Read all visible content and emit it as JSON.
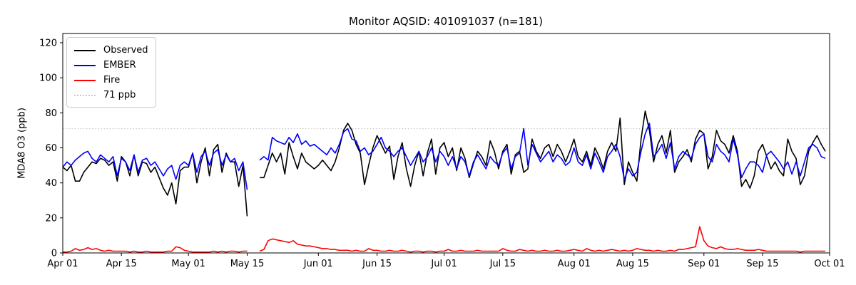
{
  "figure": {
    "title": "Monitor AQSID: 401091037 (n=181)",
    "background": "#ffffff"
  },
  "axes": {
    "ylabel": "MDA8 O3 (ppb)",
    "yticks": [
      0,
      20,
      40,
      60,
      80,
      100,
      120
    ],
    "xticks": [
      {
        "label": "Apr 01",
        "day": 0
      },
      {
        "label": "Apr 15",
        "day": 14
      },
      {
        "label": "May 01",
        "day": 30
      },
      {
        "label": "May 15",
        "day": 44
      },
      {
        "label": "Jun 01",
        "day": 61
      },
      {
        "label": "Jun 15",
        "day": 75
      },
      {
        "label": "Jul 01",
        "day": 91
      },
      {
        "label": "Jul 15",
        "day": 105
      },
      {
        "label": "Aug 01",
        "day": 122
      },
      {
        "label": "Aug 15",
        "day": 136
      },
      {
        "label": "Sep 01",
        "day": 153
      },
      {
        "label": "Sep 15",
        "day": 167
      },
      {
        "label": "Oct 01",
        "day": 183
      }
    ]
  },
  "legend": {
    "items": [
      {
        "label": "Observed",
        "color": "#000000",
        "style": "solid"
      },
      {
        "label": "EMBER",
        "color": "#0000ff",
        "style": "solid"
      },
      {
        "label": "Fire",
        "color": "#ff0000",
        "style": "solid"
      },
      {
        "label": "71 ppb",
        "color": "#c8c8c8",
        "style": "dotted"
      }
    ]
  },
  "chart_data": {
    "type": "line",
    "title": "Monitor AQSID: 401091037 (n=181)",
    "xlabel": "",
    "ylabel": "MDA8 O3 (ppb)",
    "x_unit": "daily values, days since Apr 01 (Apr 01 - Sep 30, n=181, 2 missing days May 16-17)",
    "x_range": [
      0,
      183
    ],
    "ylim": [
      0,
      125.3
    ],
    "grid": false,
    "legend_position": "upper left",
    "threshold": {
      "value": 71,
      "label": "71 ppb",
      "color": "#c8c8c8",
      "style": "dotted"
    },
    "series": [
      {
        "name": "Observed",
        "color": "#000000",
        "values": [
          49,
          47,
          50,
          41,
          41,
          46,
          49,
          52,
          51,
          54,
          53,
          50,
          52,
          41,
          55,
          52,
          44,
          56,
          44,
          52,
          51,
          46,
          49,
          43,
          37,
          33,
          40,
          28,
          47,
          49,
          49,
          57,
          40,
          52,
          60,
          44,
          59,
          62,
          46,
          57,
          52,
          52,
          38,
          50,
          21,
          null,
          null,
          43,
          43,
          50,
          57,
          52,
          57,
          45,
          63,
          55,
          48,
          57,
          52,
          50,
          48,
          50,
          53,
          50,
          47,
          52,
          60,
          70,
          74,
          70,
          62,
          57,
          39,
          50,
          60,
          67,
          62,
          57,
          61,
          42,
          55,
          63,
          48,
          38,
          50,
          58,
          44,
          57,
          65,
          45,
          60,
          63,
          55,
          60,
          47,
          60,
          54,
          43,
          51,
          58,
          55,
          50,
          64,
          58,
          48,
          58,
          62,
          45,
          56,
          58,
          46,
          48,
          65,
          58,
          54,
          60,
          62,
          55,
          62,
          58,
          52,
          58,
          65,
          55,
          52,
          58,
          50,
          60,
          55,
          48,
          58,
          63,
          58,
          77,
          39,
          52,
          46,
          41,
          65,
          81,
          70,
          52,
          62,
          67,
          57,
          70,
          46,
          52,
          55,
          59,
          52,
          65,
          70,
          68,
          48,
          55,
          70,
          64,
          62,
          57,
          67,
          58,
          38,
          42,
          37,
          44,
          58,
          62,
          55,
          48,
          52,
          47,
          44,
          65,
          58,
          54,
          39,
          44,
          58,
          63,
          67,
          62,
          58
        ]
      },
      {
        "name": "EMBER",
        "color": "#0000ff",
        "values": [
          49,
          52,
          50,
          53,
          55,
          57,
          58,
          54,
          52,
          56,
          54,
          52,
          55,
          44,
          54,
          52,
          47,
          56,
          46,
          53,
          54,
          50,
          52,
          48,
          44,
          48,
          50,
          42,
          50,
          52,
          50,
          57,
          46,
          55,
          58,
          50,
          57,
          59,
          50,
          56,
          52,
          54,
          47,
          52,
          36,
          null,
          null,
          53,
          55,
          53,
          66,
          64,
          63,
          62,
          66,
          63,
          68,
          62,
          64,
          61,
          62,
          60,
          58,
          56,
          60,
          57,
          62,
          69,
          71,
          65,
          64,
          58,
          60,
          56,
          58,
          62,
          66,
          60,
          58,
          55,
          58,
          60,
          55,
          50,
          54,
          58,
          52,
          55,
          60,
          52,
          58,
          55,
          50,
          55,
          48,
          55,
          52,
          44,
          52,
          56,
          52,
          48,
          55,
          52,
          50,
          57,
          60,
          48,
          55,
          57,
          71,
          50,
          62,
          57,
          52,
          55,
          58,
          52,
          56,
          54,
          50,
          52,
          60,
          52,
          50,
          56,
          48,
          57,
          52,
          46,
          55,
          58,
          62,
          55,
          42,
          48,
          44,
          46,
          58,
          68,
          74,
          55,
          58,
          62,
          54,
          63,
          48,
          55,
          58,
          56,
          54,
          62,
          66,
          68,
          55,
          52,
          62,
          58,
          56,
          52,
          65,
          56,
          43,
          48,
          52,
          52,
          50,
          46,
          56,
          58,
          55,
          52,
          48,
          52,
          45,
          52,
          44,
          52,
          60,
          62,
          60,
          55,
          54
        ]
      },
      {
        "name": "Fire",
        "color": "#ff0000",
        "values": [
          0.5,
          0.5,
          1,
          2.5,
          1.5,
          2,
          3,
          2,
          2.5,
          1.5,
          1,
          1.5,
          1,
          1,
          1,
          1,
          0.5,
          1,
          0.5,
          0.5,
          1,
          0.5,
          0.5,
          0.5,
          0.5,
          1,
          1,
          3.5,
          3,
          1.5,
          1,
          0.5,
          0.5,
          0.5,
          0.5,
          0.5,
          1,
          0.5,
          1,
          0.5,
          1,
          1,
          0.5,
          1,
          1,
          null,
          null,
          1,
          2,
          7,
          8,
          7.5,
          7,
          6.5,
          6,
          7,
          5,
          4.5,
          4,
          4,
          3.5,
          3,
          2.5,
          2.5,
          2,
          2,
          1.5,
          1.5,
          1.5,
          1,
          1.5,
          1,
          1,
          2.5,
          1.5,
          1.5,
          1,
          1,
          1.5,
          1,
          1,
          1.5,
          1,
          0.5,
          1,
          1,
          0.5,
          1,
          1,
          0.5,
          1,
          1,
          2,
          1,
          1,
          1.5,
          1,
          1,
          1,
          1.5,
          1,
          1,
          1,
          1,
          1,
          2.5,
          1.5,
          1,
          1,
          2,
          1.5,
          1,
          1.5,
          1,
          1,
          1.5,
          1,
          1,
          1.5,
          1,
          1,
          1.5,
          2,
          1.5,
          1,
          2.5,
          1.5,
          1,
          1.5,
          1,
          1.5,
          2,
          1.5,
          1,
          1.5,
          1,
          1.5,
          2.5,
          2,
          1.5,
          1.5,
          1,
          1.5,
          1,
          1,
          1.5,
          1,
          2,
          2,
          2.5,
          3,
          3.5,
          15,
          7,
          4,
          3,
          2.5,
          3.5,
          2.5,
          2,
          2,
          2.5,
          2,
          1.5,
          1.5,
          1.5,
          2,
          1.5,
          1,
          1,
          1,
          1,
          1,
          1,
          1,
          1,
          0.5,
          1,
          1,
          1,
          1,
          1,
          1
        ]
      }
    ]
  }
}
